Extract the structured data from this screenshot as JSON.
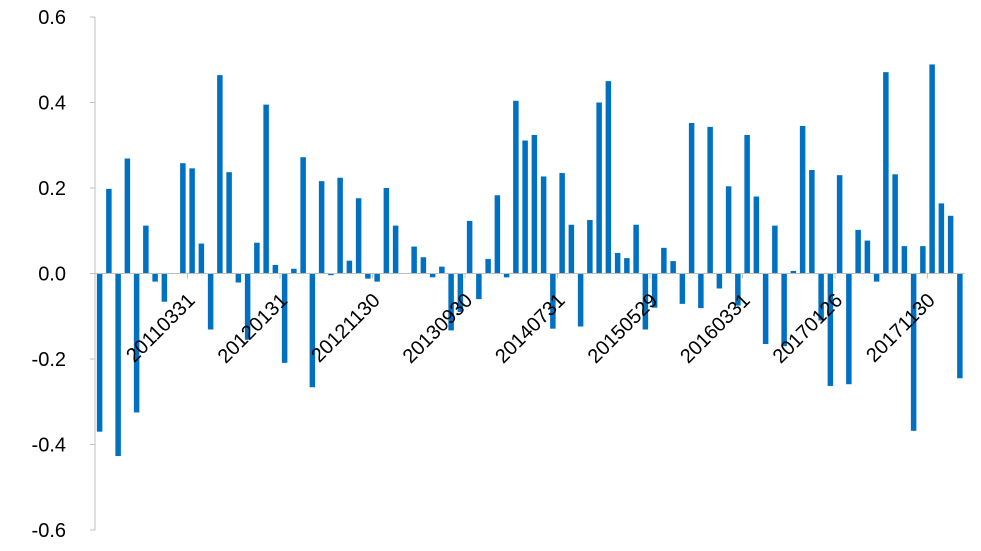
{
  "chart_data": {
    "type": "bar",
    "title": "",
    "xlabel": "",
    "ylabel": "",
    "ylim": [
      -0.6,
      0.6
    ],
    "y_ticks": [
      "0.6",
      "0.4",
      "0.2",
      "0.0",
      "-0.2",
      "-0.4",
      "-0.6"
    ],
    "y_tick_values": [
      0.6,
      0.4,
      0.2,
      0.0,
      -0.2,
      -0.4,
      -0.6
    ],
    "grid": false,
    "bar_color": "#0070C0",
    "x_tick_labels": [
      {
        "index": 10,
        "label": "20110331"
      },
      {
        "index": 20,
        "label": "20120131"
      },
      {
        "index": 30,
        "label": "20121130"
      },
      {
        "index": 40,
        "label": "20130930"
      },
      {
        "index": 50,
        "label": "20140731"
      },
      {
        "index": 60,
        "label": "20150529"
      },
      {
        "index": 70,
        "label": "20160331"
      },
      {
        "index": 80,
        "label": "20170126"
      },
      {
        "index": 90,
        "label": "20171130"
      }
    ],
    "values": [
      -0.37,
      0.198,
      -0.427,
      0.269,
      -0.325,
      0.112,
      -0.019,
      -0.066,
      0,
      0.258,
      0.246,
      0.07,
      -0.131,
      0.464,
      0.237,
      -0.021,
      -0.155,
      0.072,
      0.395,
      0.02,
      -0.209,
      0.011,
      0.272,
      -0.266,
      0.216,
      -0.004,
      0.224,
      0.03,
      0.176,
      -0.012,
      -0.019,
      0.2,
      0.112,
      0,
      0.063,
      0.038,
      -0.009,
      0.016,
      -0.133,
      -0.09,
      0.123,
      -0.06,
      0.034,
      0.183,
      -0.009,
      0.404,
      0.311,
      0.324,
      0.227,
      -0.129,
      0.235,
      0.114,
      -0.124,
      0.125,
      0.4,
      0.45,
      0.048,
      0.036,
      0.114,
      -0.131,
      -0.08,
      0.06,
      0.029,
      -0.071,
      0.352,
      -0.081,
      0.343,
      -0.035,
      0.204,
      -0.075,
      0.324,
      0.18,
      -0.165,
      0.112,
      -0.17,
      0.006,
      0.345,
      0.242,
      -0.11,
      -0.263,
      0.23,
      -0.259,
      0.102,
      0.077,
      -0.019,
      0.471,
      0.232,
      0.064,
      -0.368,
      0.064,
      0.489,
      0.164,
      0.135,
      -0.245
    ]
  }
}
